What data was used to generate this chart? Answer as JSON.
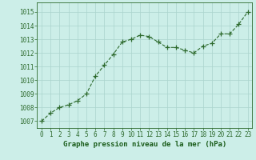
{
  "x": [
    0,
    1,
    2,
    3,
    4,
    5,
    6,
    7,
    8,
    9,
    10,
    11,
    12,
    13,
    14,
    15,
    16,
    17,
    18,
    19,
    20,
    21,
    22,
    23
  ],
  "y": [
    1007.0,
    1007.6,
    1008.0,
    1008.2,
    1008.5,
    1009.0,
    1010.3,
    1011.1,
    1011.9,
    1012.8,
    1013.0,
    1013.3,
    1013.2,
    1012.8,
    1012.4,
    1012.4,
    1012.2,
    1012.0,
    1012.5,
    1012.7,
    1013.4,
    1013.4,
    1014.1,
    1015.0
  ],
  "line_color": "#2d6a2d",
  "marker": "+",
  "markersize": 4,
  "linewidth": 0.8,
  "linestyle": "--",
  "xlabel": "Graphe pression niveau de la mer (hPa)",
  "xlabel_color": "#1a5c1a",
  "xlabel_fontsize": 6.5,
  "bg_color": "#cceee8",
  "grid_color": "#aad4cc",
  "tick_color": "#2d6a2d",
  "tick_label_color": "#2d6a2d",
  "tick_fontsize": 5.5,
  "ylim": [
    1006.5,
    1015.7
  ],
  "xlim": [
    -0.5,
    23.5
  ],
  "yticks": [
    1007,
    1008,
    1009,
    1010,
    1011,
    1012,
    1013,
    1014,
    1015
  ],
  "xticks": [
    0,
    1,
    2,
    3,
    4,
    5,
    6,
    7,
    8,
    9,
    10,
    11,
    12,
    13,
    14,
    15,
    16,
    17,
    18,
    19,
    20,
    21,
    22,
    23
  ],
  "spine_color": "#2d6a2d"
}
